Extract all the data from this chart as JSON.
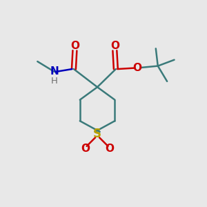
{
  "bg_color": "#e8e8e8",
  "ring_color": "#3a7a7a",
  "S_color": "#b8a000",
  "N_color": "#0000bb",
  "O_color": "#cc0000",
  "H_color": "#707070",
  "line_width": 1.8,
  "fig_size": [
    3.0,
    3.0
  ],
  "dpi": 100,
  "xlim": [
    0,
    10
  ],
  "ylim": [
    0,
    10
  ]
}
